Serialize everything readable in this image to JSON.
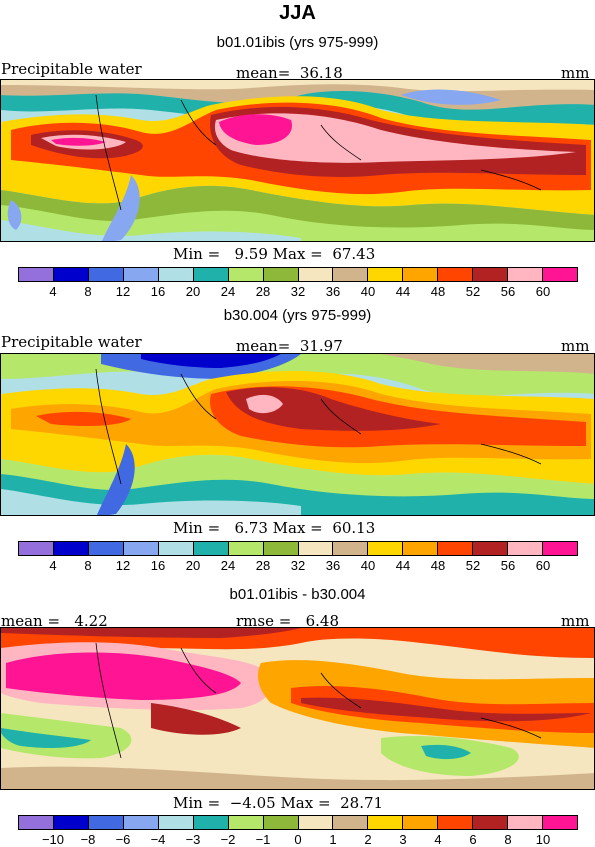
{
  "season_title": "JJA",
  "units": "mm",
  "variable": "Precipitable water",
  "panels": [
    {
      "title": "b01.01ibis (yrs 975-999)",
      "mean_label": "mean=",
      "mean": "36.18",
      "min_label": "Min =",
      "min": "9.59",
      "max_label": "Max =",
      "max": "67.43"
    },
    {
      "title": "b30.004 (yrs 975-999)",
      "mean_label": "mean=",
      "mean": "31.97",
      "min_label": "Min =",
      "min": "6.73",
      "max_label": "Max =",
      "max": "60.13"
    },
    {
      "title": "b01.01ibis - b30.004",
      "mean_label": "mean =",
      "mean": "4.22",
      "rmse_label": "rmse =",
      "rmse": "6.48",
      "min_label": "Min =",
      "min": "−4.05",
      "max_label": "Max =",
      "max": "28.71"
    }
  ],
  "colorbar_colors": [
    "#9370db",
    "#0000cd",
    "#4169e1",
    "#87a8f0",
    "#b0e0e6",
    "#20b2aa",
    "#b5e86a",
    "#8db83a",
    "#f5e6c0",
    "#d2b48c",
    "#ffd700",
    "#ffa500",
    "#ff4500",
    "#b22222",
    "#ffb6c1",
    "#ff1493"
  ],
  "colorbar_ticks_abs": [
    "4",
    "8",
    "12",
    "16",
    "20",
    "24",
    "28",
    "32",
    "36",
    "40",
    "44",
    "48",
    "52",
    "56",
    "60"
  ],
  "colorbar_ticks_diff": [
    "−10",
    "−8",
    "−6",
    "−4",
    "−3",
    "−2",
    "−1",
    "0",
    "1",
    "2",
    "3",
    "4",
    "6",
    "8",
    "10"
  ],
  "chart_data": [
    {
      "type": "heatmap",
      "title": "b01.01ibis (yrs 975-999)",
      "variable": "Precipitable water",
      "units": "mm",
      "mean": 36.18,
      "min": 9.59,
      "max": 67.43,
      "levels": [
        4,
        8,
        12,
        16,
        20,
        24,
        28,
        32,
        36,
        40,
        44,
        48,
        52,
        56,
        60
      ]
    },
    {
      "type": "heatmap",
      "title": "b30.004 (yrs 975-999)",
      "variable": "Precipitable water",
      "units": "mm",
      "mean": 31.97,
      "min": 6.73,
      "max": 60.13,
      "levels": [
        4,
        8,
        12,
        16,
        20,
        24,
        28,
        32,
        36,
        40,
        44,
        48,
        52,
        56,
        60
      ]
    },
    {
      "type": "heatmap",
      "title": "b01.01ibis - b30.004",
      "units": "mm",
      "mean": 4.22,
      "rmse": 6.48,
      "min": -4.05,
      "max": 28.71,
      "levels": [
        -10,
        -8,
        -6,
        -4,
        -3,
        -2,
        -1,
        0,
        1,
        2,
        3,
        4,
        6,
        8,
        10
      ]
    }
  ]
}
